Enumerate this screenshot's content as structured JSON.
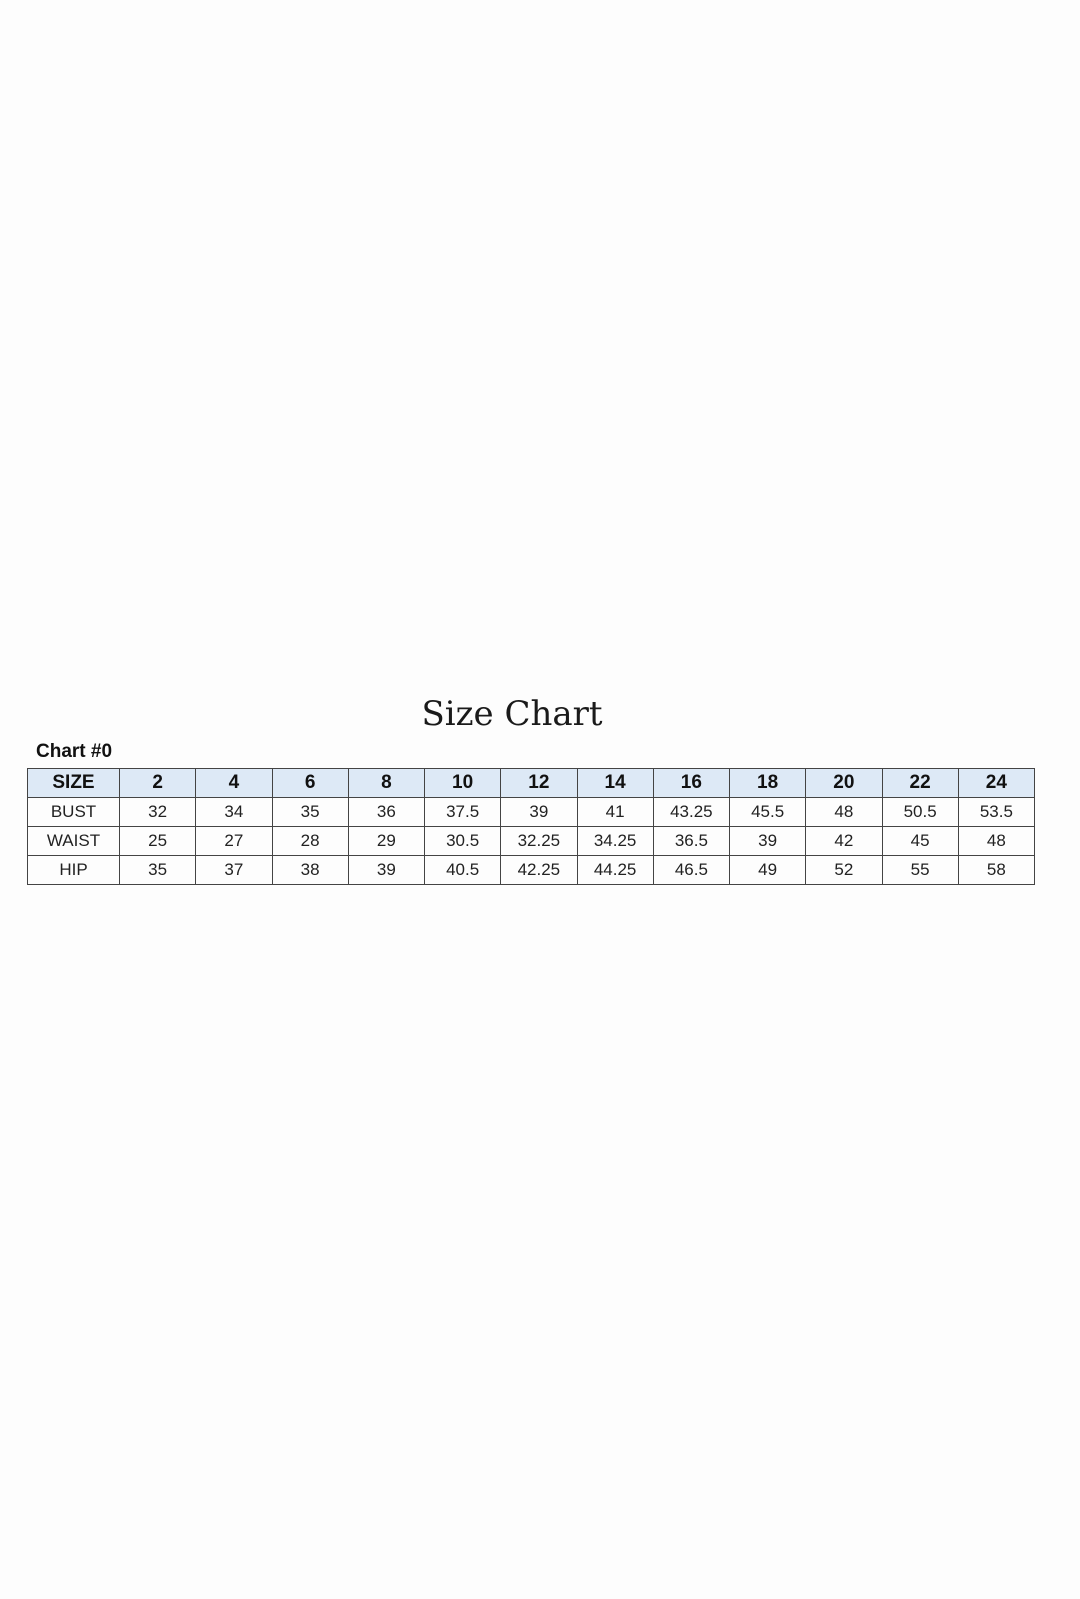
{
  "title": "Size Chart",
  "subtitle": "Chart #0",
  "chart_data": {
    "type": "table",
    "columns": [
      "SIZE",
      "2",
      "4",
      "6",
      "8",
      "10",
      "12",
      "14",
      "16",
      "18",
      "20",
      "22",
      "24"
    ],
    "rows": [
      [
        "BUST",
        "32",
        "34",
        "35",
        "36",
        "37.5",
        "39",
        "41",
        "43.25",
        "45.5",
        "48",
        "50.5",
        "53.5"
      ],
      [
        "WAIST",
        "25",
        "27",
        "28",
        "29",
        "30.5",
        "32.25",
        "34.25",
        "36.5",
        "39",
        "42",
        "45",
        "48"
      ],
      [
        "HIP",
        "35",
        "37",
        "38",
        "39",
        "40.5",
        "42.25",
        "44.25",
        "46.5",
        "49",
        "52",
        "55",
        "58"
      ]
    ],
    "header_color": "#dde9f6"
  }
}
